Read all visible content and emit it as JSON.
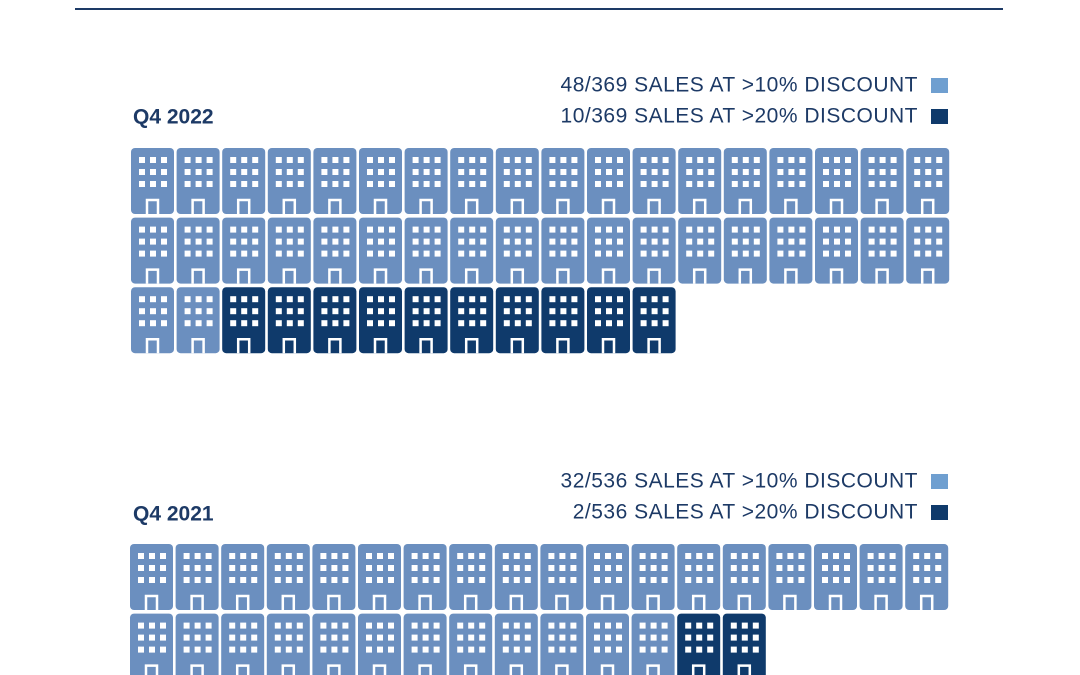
{
  "chart_data": [
    {
      "type": "pictograph",
      "title": "Q4 2022",
      "series": [
        {
          "name": "48/369 SALES AT >10% DISCOUNT",
          "color": "#6b8fbf",
          "values": [
            48
          ]
        },
        {
          "name": "10/369 SALES AT >20% DISCOUNT",
          "color": "#0f3a6b",
          "values": [
            10
          ]
        }
      ]
    },
    {
      "type": "pictograph",
      "title": "Q4 2021",
      "series": [
        {
          "name": "32/536 SALES AT >10% DISCOUNT",
          "color": "#6b8fbf",
          "values": [
            32
          ]
        },
        {
          "name": "2/536 SALES AT >20% DISCOUNT",
          "color": "#0f3a6b",
          "values": [
            2
          ]
        }
      ]
    }
  ]
}
